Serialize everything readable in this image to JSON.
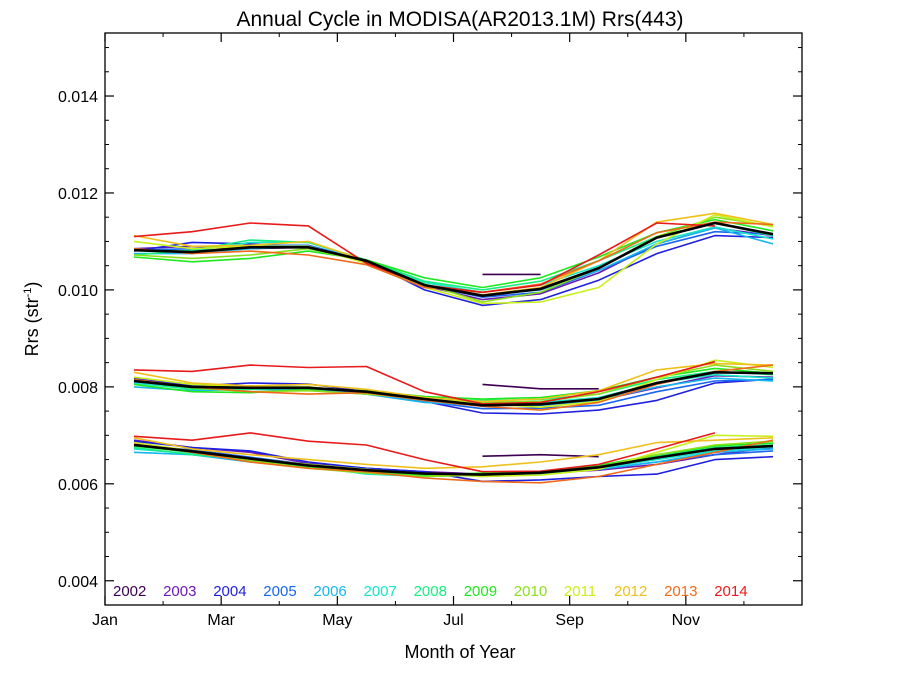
{
  "chart_data": {
    "type": "line",
    "title": "Annual Cycle in MODISA(AR2013.1M) Rrs(443)",
    "xlabel": "Month of Year",
    "ylabel_main": "Rrs (str",
    "ylabel_sup": "-1",
    "ylabel_close": ")",
    "xlim": [
      0,
      12
    ],
    "ylim": [
      0.0035,
      0.0153
    ],
    "x_ticks": [
      {
        "label": "Jan",
        "value": 0
      },
      {
        "label": "Mar",
        "value": 2
      },
      {
        "label": "May",
        "value": 4
      },
      {
        "label": "Jul",
        "value": 6
      },
      {
        "label": "Sep",
        "value": 8
      },
      {
        "label": "Nov",
        "value": 10
      }
    ],
    "y_ticks": [
      {
        "label": "0.004",
        "value": 0.004
      },
      {
        "label": "0.006",
        "value": 0.006
      },
      {
        "label": "0.008",
        "value": 0.008
      },
      {
        "label": "0.010",
        "value": 0.01
      },
      {
        "label": "0.012",
        "value": 0.012
      },
      {
        "label": "0.014",
        "value": 0.014
      }
    ],
    "grid": false,
    "legend_position": "bottom-left",
    "x": [
      0.5,
      1.5,
      2.5,
      3.5,
      4.5,
      5.5,
      6.5,
      7.5,
      8.5,
      9.5,
      10.5,
      11.5
    ],
    "series": [
      {
        "name": "2002",
        "color": "#3d0050",
        "groups": [
          [
            null,
            null,
            null,
            null,
            null,
            null,
            0.01032,
            0.01032,
            null,
            null,
            null,
            null
          ],
          [
            null,
            null,
            null,
            null,
            null,
            null,
            0.00805,
            0.00796,
            0.00796,
            null,
            null,
            null
          ],
          [
            null,
            null,
            null,
            null,
            null,
            null,
            0.00657,
            0.0066,
            0.00656,
            null,
            null,
            null
          ]
        ]
      },
      {
        "name": "2003",
        "color": "#6a1ab5",
        "groups": [
          [
            0.01085,
            0.0109,
            0.01085,
            0.01088,
            0.01062,
            0.01008,
            0.0098,
            0.00992,
            0.01035,
            0.01095,
            0.01128,
            0.01112
          ],
          [
            0.00818,
            0.00805,
            0.00802,
            0.008,
            0.00788,
            0.00773,
            0.00765,
            0.00766,
            0.00772,
            0.00798,
            0.00823,
            0.0082
          ],
          [
            0.0069,
            0.00675,
            0.00665,
            0.00642,
            0.00632,
            0.00625,
            0.0062,
            0.00622,
            0.00628,
            0.0064,
            0.0066,
            0.00675
          ]
        ]
      },
      {
        "name": "2004",
        "color": "#1f1fe0",
        "groups": [
          [
            0.0108,
            0.01098,
            0.01095,
            0.01088,
            0.0106,
            0.01,
            0.00968,
            0.0098,
            0.0102,
            0.01075,
            0.01112,
            0.01108
          ],
          [
            0.00818,
            0.00802,
            0.00808,
            0.00806,
            0.0079,
            0.0077,
            0.00746,
            0.00744,
            0.00752,
            0.00772,
            0.00808,
            0.00816
          ],
          [
            0.00688,
            0.00675,
            0.00668,
            0.00645,
            0.00632,
            0.00625,
            0.00605,
            0.00608,
            0.00615,
            0.0062,
            0.0065,
            0.00656
          ]
        ]
      },
      {
        "name": "2005",
        "color": "#1a66f0",
        "groups": [
          [
            0.01082,
            0.01085,
            0.01092,
            0.01092,
            0.0106,
            0.0101,
            0.00985,
            0.00995,
            0.0104,
            0.0109,
            0.0112,
            0.01115
          ],
          [
            0.0081,
            0.008,
            0.008,
            0.00795,
            0.00785,
            0.0077,
            0.00755,
            0.00756,
            0.00762,
            0.0079,
            0.00812,
            0.00815
          ],
          [
            0.0068,
            0.0067,
            0.00655,
            0.0064,
            0.0063,
            0.00622,
            0.00618,
            0.00622,
            0.0063,
            0.00645,
            0.0066,
            0.00668
          ]
        ]
      },
      {
        "name": "2006",
        "color": "#16b6f0",
        "groups": [
          [
            0.01075,
            0.01075,
            0.01085,
            0.0109,
            0.01058,
            0.01008,
            0.0099,
            0.01,
            0.0104,
            0.01095,
            0.01128,
            0.01095
          ],
          [
            0.008,
            0.00792,
            0.00795,
            0.00793,
            0.00785,
            0.00768,
            0.00762,
            0.00762,
            0.00772,
            0.008,
            0.00818,
            0.00812
          ],
          [
            0.00665,
            0.0066,
            0.00645,
            0.00635,
            0.00625,
            0.0062,
            0.00615,
            0.0062,
            0.0063,
            0.00645,
            0.00665,
            0.00672
          ]
        ]
      },
      {
        "name": "2007",
        "color": "#16e6c8",
        "groups": [
          [
            0.01082,
            0.0108,
            0.01098,
            0.01098,
            0.0106,
            0.01015,
            0.00995,
            0.0101,
            0.0105,
            0.011,
            0.0113,
            0.01105
          ],
          [
            0.00808,
            0.00795,
            0.008,
            0.008,
            0.00788,
            0.00772,
            0.00768,
            0.00768,
            0.00778,
            0.00808,
            0.00825,
            0.00818
          ],
          [
            0.00672,
            0.00662,
            0.00648,
            0.00636,
            0.0062,
            0.00615,
            0.00618,
            0.00622,
            0.00632,
            0.0065,
            0.00668,
            0.00676
          ]
        ]
      },
      {
        "name": "2008",
        "color": "#16f080",
        "groups": [
          [
            0.01072,
            0.01082,
            0.01103,
            0.01098,
            0.01062,
            0.01018,
            0.01,
            0.01018,
            0.0106,
            0.0111,
            0.01138,
            0.01112
          ],
          [
            0.00812,
            0.00795,
            0.00795,
            0.00798,
            0.0079,
            0.00776,
            0.00772,
            0.00774,
            0.00785,
            0.00815,
            0.00832,
            0.00825
          ],
          [
            0.00675,
            0.0066,
            0.0065,
            0.0064,
            0.00628,
            0.00618,
            0.0062,
            0.00625,
            0.00636,
            0.00658,
            0.00675,
            0.0068
          ]
        ]
      },
      {
        "name": "2009",
        "color": "#1ee81e",
        "groups": [
          [
            0.01068,
            0.01058,
            0.01065,
            0.0108,
            0.01062,
            0.01025,
            0.01005,
            0.01025,
            0.01068,
            0.01118,
            0.01145,
            0.01122
          ],
          [
            0.00805,
            0.0079,
            0.00788,
            0.00795,
            0.00792,
            0.0078,
            0.00775,
            0.00778,
            0.00792,
            0.0082,
            0.00838,
            0.00828
          ],
          [
            0.00678,
            0.00665,
            0.0065,
            0.00635,
            0.00625,
            0.00618,
            0.00622,
            0.00626,
            0.00638,
            0.0066,
            0.00678,
            0.00684
          ]
        ]
      },
      {
        "name": "2010",
        "color": "#8ae01a",
        "groups": [
          [
            0.01072,
            0.01065,
            0.01072,
            0.01085,
            0.01058,
            0.01012,
            0.00975,
            0.00995,
            0.01045,
            0.0111,
            0.0115,
            0.01132
          ],
          [
            0.00815,
            0.00798,
            0.0079,
            0.00792,
            0.00785,
            0.00775,
            0.00768,
            0.0077,
            0.00785,
            0.0082,
            0.00845,
            0.00832
          ],
          [
            0.0068,
            0.00665,
            0.00648,
            0.00632,
            0.00622,
            0.00615,
            0.00618,
            0.00622,
            0.00635,
            0.0066,
            0.0068,
            0.00688
          ]
        ]
      },
      {
        "name": "2011",
        "color": "#c8f01a",
        "groups": [
          [
            0.011,
            0.01085,
            0.0109,
            0.0109,
            0.01055,
            0.01005,
            0.00972,
            0.00975,
            0.01005,
            0.01095,
            0.01155,
            0.0113
          ],
          [
            0.0082,
            0.00805,
            0.008,
            0.008,
            0.0079,
            0.00776,
            0.00765,
            0.00758,
            0.0077,
            0.00815,
            0.00855,
            0.0084
          ],
          [
            0.00685,
            0.00668,
            0.00652,
            0.0064,
            0.0063,
            0.0062,
            0.00615,
            0.00618,
            0.0063,
            0.00665,
            0.007,
            0.00698
          ]
        ]
      },
      {
        "name": "2012",
        "color": "#f0c01a",
        "groups": [
          [
            0.01112,
            0.0109,
            0.01092,
            0.011,
            0.0106,
            0.01008,
            0.0099,
            0.01005,
            0.0106,
            0.0114,
            0.01158,
            0.01135
          ],
          [
            0.0083,
            0.00808,
            0.00802,
            0.00805,
            0.00795,
            0.00778,
            0.0077,
            0.00775,
            0.00792,
            0.00835,
            0.00848,
            0.00845
          ],
          [
            0.00695,
            0.00672,
            0.0066,
            0.0065,
            0.0064,
            0.00632,
            0.00635,
            0.00645,
            0.0066,
            0.00685,
            0.0069,
            0.00695
          ]
        ]
      },
      {
        "name": "2013",
        "color": "#f06a1a",
        "groups": [
          [
            0.01085,
            0.01075,
            0.0108,
            0.01072,
            0.01052,
            0.01005,
            0.00995,
            0.01012,
            0.0106,
            0.01118,
            0.0114,
            0.01135
          ],
          [
            0.00815,
            0.008,
            0.0079,
            0.00785,
            0.00788,
            0.00772,
            0.0076,
            0.00752,
            0.00768,
            0.00805,
            0.00832,
            0.00845
          ],
          [
            0.00682,
            0.00665,
            0.00645,
            0.00632,
            0.00625,
            0.00612,
            0.00605,
            0.00602,
            0.00615,
            0.0064,
            0.00665,
            0.0069
          ]
        ]
      },
      {
        "name": "2014",
        "color": "#e81a1a",
        "groups": [
          [
            0.0111,
            0.0112,
            0.01138,
            0.01132,
            0.01055,
            0.0101,
            0.00995,
            0.0101,
            0.01072,
            0.01138,
            0.01132,
            null
          ],
          [
            0.00835,
            0.00832,
            0.00845,
            0.0084,
            0.00842,
            0.0079,
            0.00765,
            0.00768,
            0.0079,
            0.0082,
            0.00852,
            null
          ],
          [
            0.00698,
            0.0069,
            0.00705,
            0.00688,
            0.0068,
            0.0065,
            0.00625,
            0.00626,
            0.0064,
            0.00672,
            0.00705,
            null
          ]
        ]
      },
      {
        "name": "",
        "color": "#000000",
        "width": 2.6,
        "groups": [
          [
            0.01082,
            0.01078,
            0.01088,
            0.01088,
            0.0106,
            0.0101,
            0.00988,
            0.01002,
            0.01045,
            0.01108,
            0.01138,
            0.01115
          ],
          [
            0.00812,
            0.008,
            0.00798,
            0.00798,
            0.0079,
            0.00775,
            0.00762,
            0.00764,
            0.00775,
            0.00808,
            0.0083,
            0.00828
          ],
          [
            0.0068,
            0.00667,
            0.00652,
            0.00638,
            0.00628,
            0.00621,
            0.00619,
            0.00623,
            0.00634,
            0.00654,
            0.00672,
            0.00678
          ]
        ]
      }
    ]
  }
}
